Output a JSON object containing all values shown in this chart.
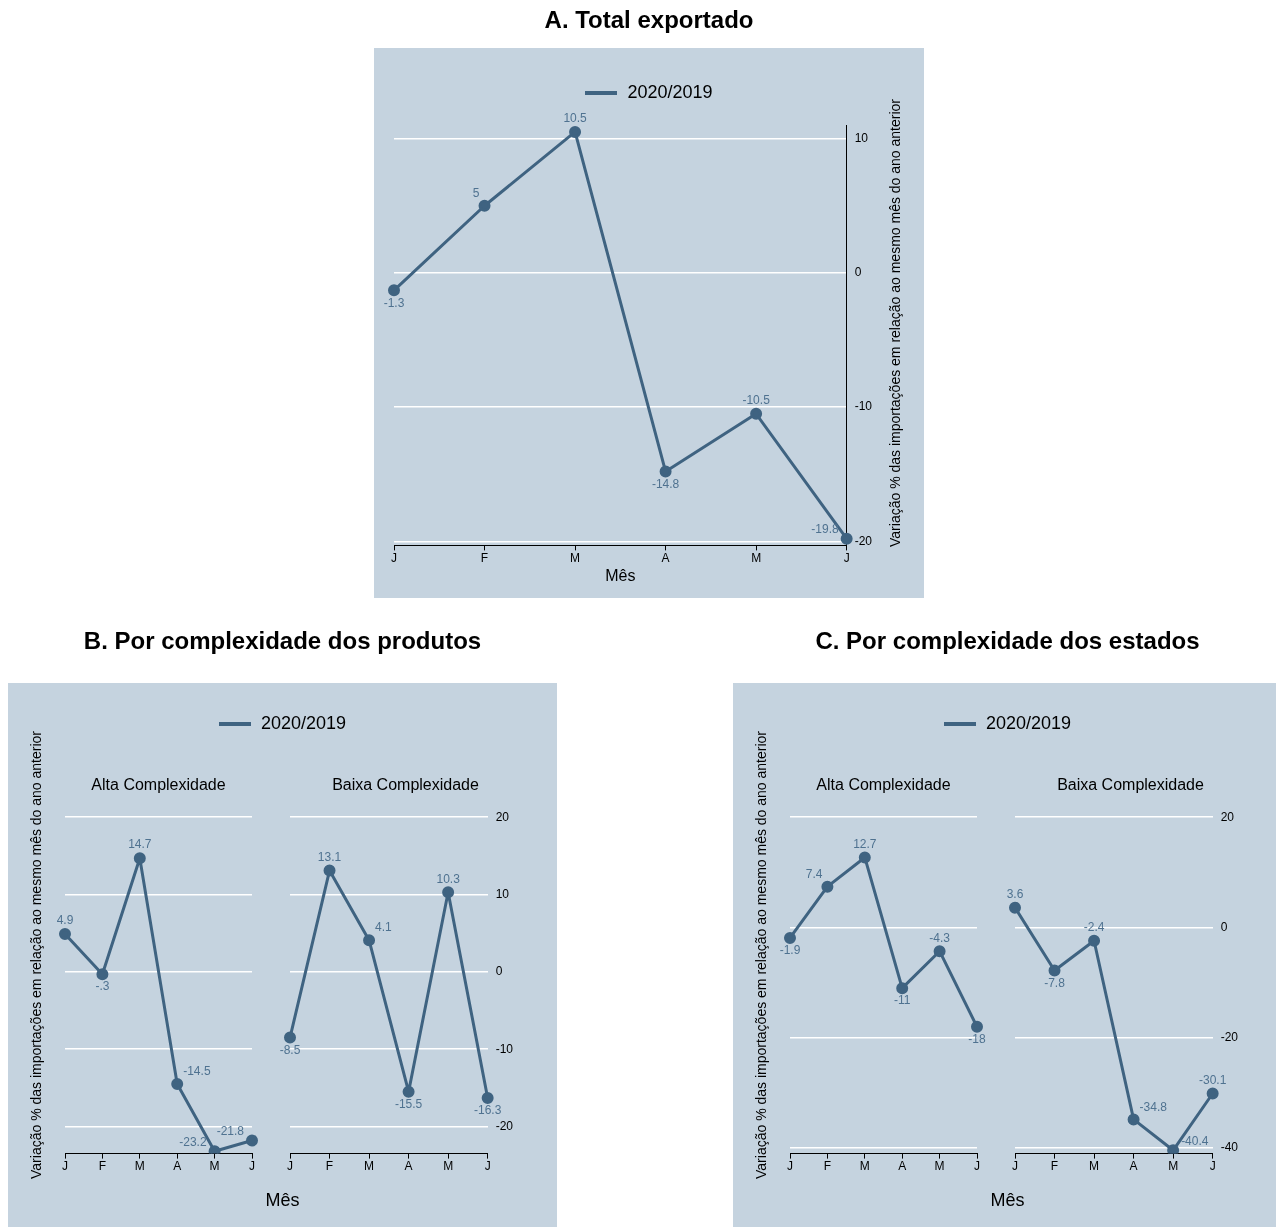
{
  "chart_data": [
    {
      "type": "line",
      "title": "A. Total exportado",
      "xlabel": "Mês",
      "ylabel": "Variação % das importações em relação ao mesmo mês do ano anterior",
      "categories": [
        "J",
        "F",
        "M",
        "A",
        "M",
        "J"
      ],
      "series": [
        {
          "name": "2020/2019",
          "color": "#3f6381",
          "values": [
            -1.3,
            5,
            10.5,
            -14.8,
            -10.5,
            -19.8
          ],
          "value_labels": [
            "-1.3",
            "5",
            "10.5",
            "-14.8",
            "-10.5",
            "-19.8"
          ]
        }
      ],
      "ylim": [
        -20.3,
        11
      ],
      "yticks": [
        -20,
        -10,
        0,
        10
      ],
      "grid": "y",
      "legend": "top",
      "marker": "circle"
    },
    {
      "type": "line",
      "title": "B. Por complexidade dos produtos",
      "subtitle": "Alta Complexidade",
      "xlabel": "Mês",
      "ylabel": "Variação % das importações em relação ao mesmo mês do ano anterior",
      "categories": [
        "J",
        "F",
        "M",
        "A",
        "M",
        "J"
      ],
      "series": [
        {
          "name": "2020/2019",
          "color": "#3f6381",
          "values": [
            4.9,
            -0.3,
            14.7,
            -14.5,
            -23.2,
            -21.8
          ],
          "value_labels": [
            "4.9",
            "-.3",
            "14.7",
            "-14.5",
            "-23.2",
            "-21.8"
          ]
        }
      ],
      "ylim": [
        -23.5,
        20
      ],
      "yticks": [
        -20,
        -10,
        0,
        10,
        20
      ],
      "grid": "y",
      "legend": "top",
      "marker": "circle",
      "tick_labels": "x"
    },
    {
      "type": "line",
      "subtitle": "Baixa Complexidade",
      "categories": [
        "J",
        "F",
        "M",
        "A",
        "M",
        "J"
      ],
      "series": [
        {
          "color": "#3f6381",
          "values": [
            -8.5,
            13.1,
            4.1,
            -15.5,
            10.3,
            -16.3
          ],
          "value_labels": [
            "-8.5",
            "13.1",
            "4.1",
            "-15.5",
            "10.3",
            "-16.3"
          ]
        }
      ],
      "ylim": [
        -23.5,
        20
      ],
      "yticks": [
        -20,
        -10,
        0,
        10,
        20
      ],
      "grid": "y",
      "marker": "circle"
    },
    {
      "type": "line",
      "title": "C. Por complexidade dos estados",
      "subtitle": "Alta Complexidade",
      "xlabel": "Mês",
      "ylabel": "Variação % das importações em relação ao mesmo mês do ano anterior",
      "categories": [
        "J",
        "F",
        "M",
        "A",
        "M",
        "J"
      ],
      "series": [
        {
          "name": "2020/2019",
          "color": "#3f6381",
          "values": [
            -1.9,
            7.4,
            12.7,
            -11,
            -4.3,
            -18
          ],
          "value_labels": [
            "-1.9",
            "7.4",
            "12.7",
            "-11",
            "-4.3",
            "-18"
          ]
        }
      ],
      "ylim": [
        -41,
        20
      ],
      "yticks": [
        -40,
        -20,
        0,
        20
      ],
      "grid": "y",
      "legend": "top",
      "marker": "circle",
      "tick_labels": "x"
    },
    {
      "type": "line",
      "subtitle": "Baixa Complexidade",
      "categories": [
        "J",
        "F",
        "M",
        "A",
        "M",
        "J"
      ],
      "series": [
        {
          "color": "#3f6381",
          "values": [
            3.6,
            -7.8,
            -2.4,
            -34.8,
            -40.4,
            -30.1
          ],
          "value_labels": [
            "3.6",
            "-7.8",
            "-2.4",
            "-34.8",
            "-40.4",
            "-30.1"
          ]
        }
      ],
      "ylim": [
        -41,
        20
      ],
      "yticks": [
        -40,
        -20,
        0,
        20
      ],
      "grid": "y",
      "marker": "circle"
    }
  ]
}
